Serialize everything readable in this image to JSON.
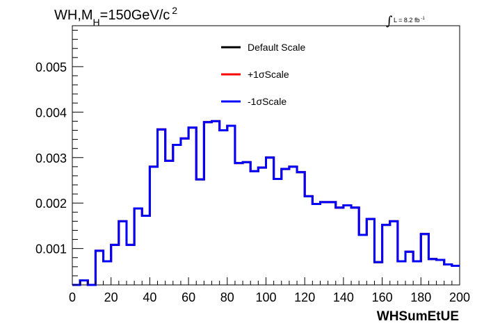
{
  "chart_data": {
    "type": "line",
    "subtype": "step-histogram",
    "title": {
      "main": "WH,M",
      "sub": "H",
      "rest": "=150GeV/c",
      "sup": "2"
    },
    "lumi": {
      "integral": "∫",
      "text": "L = 8.2 fb",
      "sup": "-1"
    },
    "xlabel": "WHSumEtUE",
    "ylabel": "",
    "xlim": [
      0,
      200
    ],
    "ylim": [
      0.0002,
      0.0059
    ],
    "x_ticks": [
      "0",
      "20",
      "40",
      "60",
      "80",
      "100",
      "120",
      "140",
      "160",
      "180",
      "200"
    ],
    "y_ticks": [
      "0.001",
      "0.002",
      "0.003",
      "0.004",
      "0.005"
    ],
    "legend_position": "top-center",
    "bin_width": 4,
    "bin_edges": [
      0,
      200
    ],
    "series": [
      {
        "name": "Default Scale",
        "color": "#000000",
        "values": [
          0.0002,
          0.0003,
          0.0002,
          0.00095,
          0.00072,
          0.00108,
          0.0016,
          0.00108,
          0.00188,
          0.00172,
          0.0028,
          0.00362,
          0.00293,
          0.00328,
          0.00342,
          0.00366,
          0.00252,
          0.00378,
          0.0038,
          0.0036,
          0.0037,
          0.00288,
          0.0029,
          0.0027,
          0.00278,
          0.003,
          0.00253,
          0.00275,
          0.0028,
          0.00268,
          0.00215,
          0.00198,
          0.00202,
          0.00202,
          0.0019,
          0.00195,
          0.0019,
          0.0013,
          0.00165,
          0.0007,
          0.00152,
          0.0016,
          0.00072,
          0.00093,
          0.00072,
          0.00132,
          0.00077,
          0.00075,
          0.00065,
          0.00062
        ]
      },
      {
        "name": "+1σScale",
        "color": "#ff0000",
        "values": [
          0.0002,
          0.0003,
          0.0002,
          0.00095,
          0.00072,
          0.00108,
          0.0016,
          0.00108,
          0.00188,
          0.00172,
          0.0028,
          0.00362,
          0.00293,
          0.00328,
          0.00342,
          0.00366,
          0.00252,
          0.00378,
          0.0038,
          0.0036,
          0.0037,
          0.00288,
          0.0029,
          0.0027,
          0.00278,
          0.003,
          0.00253,
          0.00275,
          0.0028,
          0.00268,
          0.00215,
          0.00198,
          0.00202,
          0.00202,
          0.0019,
          0.00195,
          0.0019,
          0.0013,
          0.00165,
          0.0007,
          0.00152,
          0.0016,
          0.00072,
          0.00093,
          0.00072,
          0.00132,
          0.00077,
          0.00075,
          0.00065,
          0.00062
        ]
      },
      {
        "name": "-1σScale",
        "color": "#0000ff",
        "values": [
          0.0002,
          0.0003,
          0.0002,
          0.00095,
          0.00072,
          0.00108,
          0.0016,
          0.00108,
          0.00188,
          0.00172,
          0.0028,
          0.00362,
          0.00293,
          0.00328,
          0.00342,
          0.00366,
          0.00252,
          0.00378,
          0.0038,
          0.0036,
          0.0037,
          0.00288,
          0.0029,
          0.0027,
          0.00278,
          0.003,
          0.00253,
          0.00275,
          0.0028,
          0.00268,
          0.00215,
          0.00198,
          0.00202,
          0.00202,
          0.0019,
          0.00195,
          0.0019,
          0.0013,
          0.00165,
          0.0007,
          0.00152,
          0.0016,
          0.00072,
          0.00093,
          0.00072,
          0.00132,
          0.00077,
          0.00075,
          0.00065,
          0.00062
        ]
      }
    ],
    "frame_color": "#000000",
    "grid": false
  }
}
